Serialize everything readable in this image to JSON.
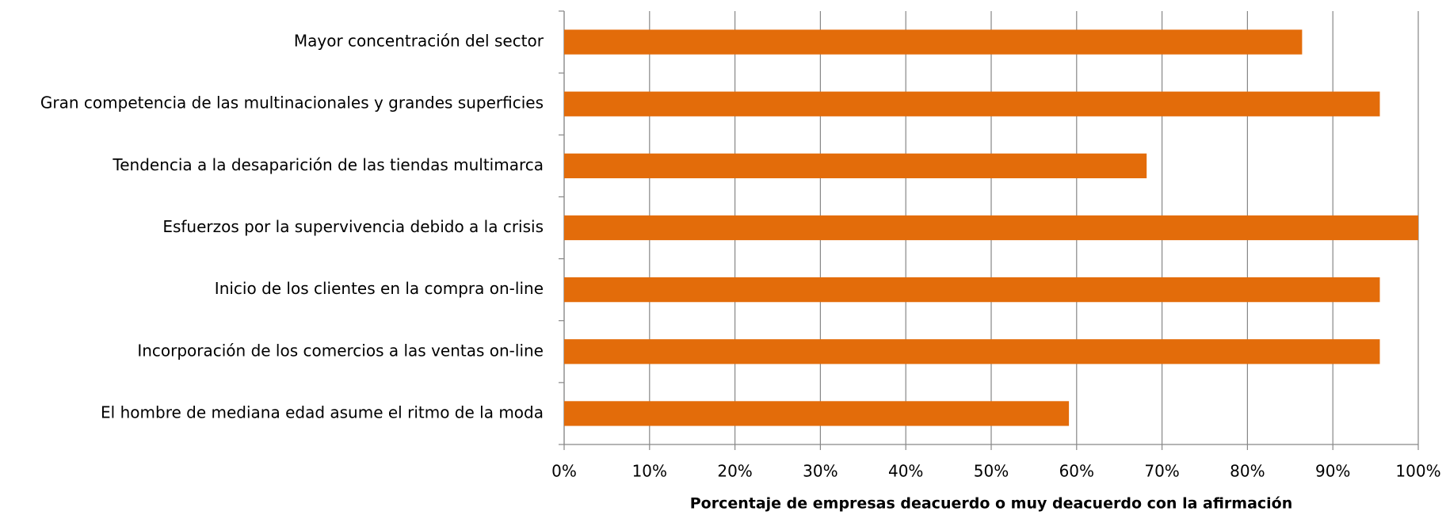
{
  "chart_data": {
    "type": "barh",
    "x_label": "Porcentaje de empresas deacuerdo o muy deacuerdo con la afirmación",
    "categories": [
      "Mayor concentración del sector",
      "Gran competencia de las multinacionales y grandes superficies",
      "Tendencia a la desaparición de las tiendas multimarca",
      "Esfuerzos por la supervivencia debido a la crisis",
      "Inicio de los clientes en la compra on-line",
      "Incorporación de los comercios a las ventas on-line",
      "El hombre de mediana edad asume el ritmo de la moda"
    ],
    "values": [
      86.4,
      95.5,
      68.2,
      100,
      95.5,
      95.5,
      59.1
    ],
    "color": "#e36c0a",
    "xlim": [
      0,
      100
    ],
    "xticks": [
      {
        "value": 0,
        "label": "0%"
      },
      {
        "value": 10,
        "label": "10%"
      },
      {
        "value": 20,
        "label": "20%"
      },
      {
        "value": 30,
        "label": "30%"
      },
      {
        "value": 40,
        "label": "40%"
      },
      {
        "value": 50,
        "label": "50%"
      },
      {
        "value": 60,
        "label": "60%"
      },
      {
        "value": 70,
        "label": "70%"
      },
      {
        "value": 80,
        "label": "80%"
      },
      {
        "value": 90,
        "label": "90%"
      },
      {
        "value": 100,
        "label": "100%"
      }
    ],
    "grid": true
  }
}
